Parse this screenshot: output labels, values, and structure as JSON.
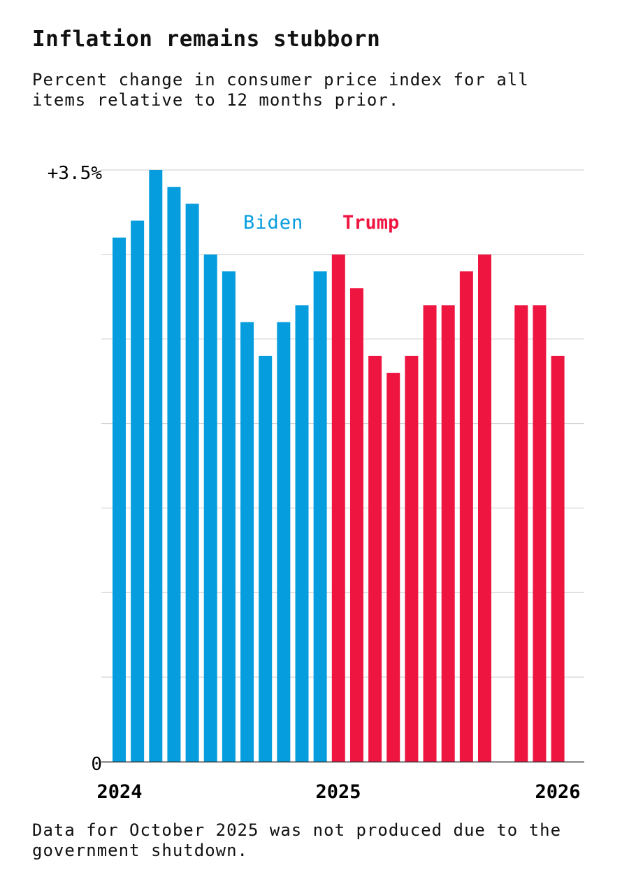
{
  "title": "Inflation remains stubborn",
  "subtitle": "Percent change in consumer price index for all items relative to 12 months prior.",
  "note": "Data for October 2025 was not produced due to the government shutdown.",
  "colors": {
    "biden": "#069DDE",
    "trump": "#EE1641",
    "grid": "#cccccc",
    "axis": "#333333"
  },
  "chart_data": {
    "type": "bar",
    "title": "Inflation remains stubborn",
    "ylim": [
      0,
      3.5
    ],
    "y_tick_labels": [
      "0",
      "+3.5%"
    ],
    "gridlines_every": 0.5,
    "grid": true,
    "x_tick_labels": [
      "2024",
      "2025",
      "2026"
    ],
    "categories": [
      "2024-01",
      "2024-02",
      "2024-03",
      "2024-04",
      "2024-05",
      "2024-06",
      "2024-07",
      "2024-08",
      "2024-09",
      "2024-10",
      "2024-11",
      "2024-12",
      "2025-01",
      "2025-02",
      "2025-03",
      "2025-04",
      "2025-05",
      "2025-06",
      "2025-07",
      "2025-08",
      "2025-09",
      "2025-10",
      "2025-11",
      "2025-12",
      "2026-01"
    ],
    "series": [
      {
        "name": "Biden",
        "values": [
          3.1,
          3.2,
          3.5,
          3.4,
          3.3,
          3.0,
          2.9,
          2.6,
          2.4,
          2.6,
          2.7,
          2.9,
          null,
          null,
          null,
          null,
          null,
          null,
          null,
          null,
          null,
          null,
          null,
          null,
          null
        ]
      },
      {
        "name": "Trump",
        "values": [
          null,
          null,
          null,
          null,
          null,
          null,
          null,
          null,
          null,
          null,
          null,
          null,
          3.0,
          2.8,
          2.4,
          2.3,
          2.4,
          2.7,
          2.7,
          2.9,
          3.0,
          null,
          2.7,
          2.7,
          2.4
        ]
      }
    ]
  }
}
